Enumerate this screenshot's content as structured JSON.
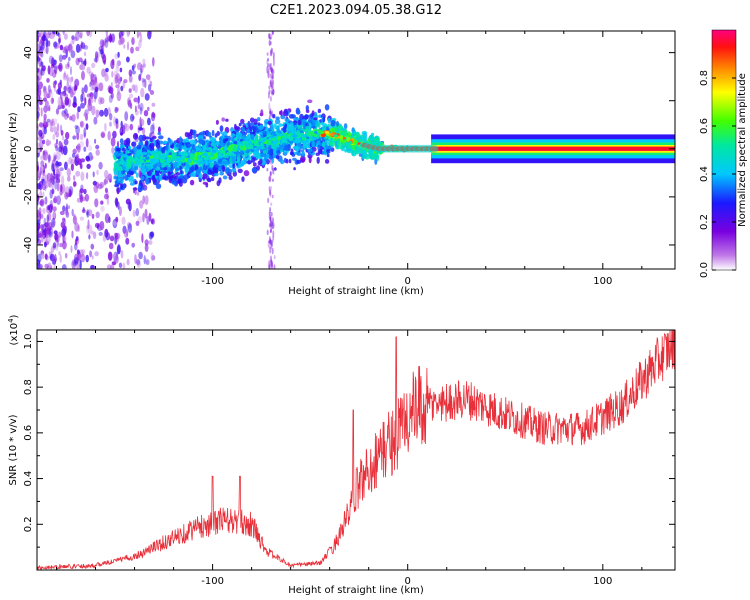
{
  "figure": {
    "title": "C2E1.2023.094.05.38.G12"
  },
  "colors": {
    "snr_line": "#e8303a",
    "background": "#ffffff",
    "axes": "#000000"
  },
  "chart_data": [
    {
      "type": "heatmap",
      "name": "spectrogram",
      "title": "",
      "xlabel": "Height of straight line (km)",
      "ylabel": "Frequency (Hz)",
      "xlim": [
        -190,
        137
      ],
      "ylim": [
        -50,
        49
      ],
      "xticks": [
        -100,
        0,
        100
      ],
      "yticks": [
        -40,
        -20,
        0,
        20,
        40
      ],
      "ridge_x": [
        -150,
        -120,
        -100,
        -80,
        -60,
        -45,
        -35,
        -25,
        -15,
        0,
        15,
        137
      ],
      "ridge_y": [
        -6,
        -4,
        -3,
        2,
        5,
        7,
        5,
        2,
        0,
        0,
        0,
        0
      ],
      "colorbar": {
        "label": "Normalized spectral amplitude",
        "range": [
          0,
          1
        ],
        "ticks": [
          "0.0",
          "0.2",
          "0.4",
          "0.6",
          "0.8"
        ],
        "colormap": "rainbow (white-violet-blue-cyan-green-yellow-orange-red-magenta)"
      },
      "grid": false
    },
    {
      "type": "line",
      "name": "snr",
      "title": "",
      "xlabel": "Height of straight line (km)",
      "ylabel": "SNR (10 * v/v)",
      "y_multiplier": "(x10^4)",
      "xlim": [
        -190,
        137
      ],
      "ylim": [
        0,
        1.05
      ],
      "xticks": [
        -100,
        0,
        100
      ],
      "yticks": [
        0.2,
        0.4,
        0.6,
        0.8,
        1.0
      ],
      "envelope_x": [
        -190,
        -160,
        -140,
        -120,
        -110,
        -95,
        -80,
        -72,
        -60,
        -45,
        -38,
        -30,
        -25,
        -15,
        -5,
        0,
        10,
        30,
        50,
        70,
        90,
        110,
        125,
        137
      ],
      "envelope_y": [
        0.01,
        0.02,
        0.06,
        0.14,
        0.18,
        0.22,
        0.2,
        0.08,
        0.02,
        0.03,
        0.1,
        0.25,
        0.38,
        0.5,
        0.6,
        0.67,
        0.72,
        0.75,
        0.68,
        0.62,
        0.62,
        0.72,
        0.88,
        1.0
      ],
      "peaks": [
        {
          "x": -6,
          "y": 1.02
        },
        {
          "x": -100,
          "y": 0.41
        },
        {
          "x": -86,
          "y": 0.41
        },
        {
          "x": -28,
          "y": 0.7
        },
        {
          "x": 132,
          "y": 1.03
        }
      ],
      "grid": false
    }
  ]
}
